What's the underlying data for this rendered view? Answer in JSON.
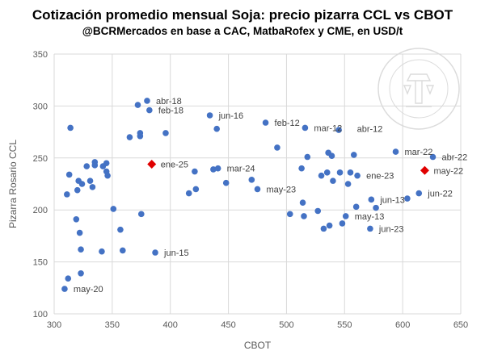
{
  "chart_data": {
    "type": "scatter",
    "title": "Cotización promedio mensual Soja: precio pizarra CCL vs CBOT",
    "subtitle": "@BCRMercados en base a CAC, MatbaRofex y CME, en USD/t",
    "xlabel": "CBOT",
    "ylabel": "Pizarra Rosario CCL",
    "xlim": [
      300,
      650
    ],
    "ylim": [
      100,
      350
    ],
    "x_ticks": [
      300,
      350,
      400,
      450,
      500,
      550,
      600,
      650
    ],
    "y_ticks": [
      100,
      150,
      200,
      250,
      300,
      350
    ],
    "grid": "major",
    "legend": "none",
    "watermark": "Bolsa de Comercio de Rosario",
    "colors": {
      "points": "#4472C4",
      "highlight": "#E00000",
      "grid": "#D9D9D9"
    },
    "series": [
      {
        "marker": "circle",
        "color": "#4472C4",
        "points": [
          [
            309,
            124
          ],
          [
            311,
            215
          ],
          [
            312,
            134
          ],
          [
            313,
            234
          ],
          [
            314,
            279
          ],
          [
            319,
            191
          ],
          [
            320,
            219
          ],
          [
            321,
            228
          ],
          [
            322,
            178
          ],
          [
            323,
            162
          ],
          [
            323,
            139
          ],
          [
            324,
            225
          ],
          [
            328,
            242
          ],
          [
            331,
            228
          ],
          [
            333,
            222
          ],
          [
            335,
            246
          ],
          [
            335,
            243
          ],
          [
            341,
            160
          ],
          [
            342,
            242
          ],
          [
            345,
            245
          ],
          [
            345,
            237
          ],
          [
            346,
            233
          ],
          [
            351,
            201
          ],
          [
            357,
            181
          ],
          [
            359,
            161
          ],
          [
            365,
            270
          ],
          [
            372,
            301
          ],
          [
            374,
            274
          ],
          [
            374,
            271
          ],
          [
            375,
            196
          ],
          [
            380,
            305
          ],
          [
            382,
            296
          ],
          [
            387,
            159
          ],
          [
            396,
            274
          ],
          [
            416,
            216
          ],
          [
            421,
            237
          ],
          [
            422,
            220
          ],
          [
            434,
            291
          ],
          [
            437,
            239
          ],
          [
            440,
            278
          ],
          [
            441,
            240
          ],
          [
            448,
            226
          ],
          [
            470,
            229
          ],
          [
            475,
            220
          ],
          [
            482,
            284
          ],
          [
            492,
            260
          ],
          [
            503,
            196
          ],
          [
            513,
            240
          ],
          [
            514,
            207
          ],
          [
            515,
            194
          ],
          [
            516,
            279
          ],
          [
            518,
            251
          ],
          [
            527,
            199
          ],
          [
            530,
            233
          ],
          [
            532,
            182
          ],
          [
            535,
            236
          ],
          [
            536,
            255
          ],
          [
            537,
            185
          ],
          [
            539,
            252
          ],
          [
            540,
            228
          ],
          [
            545,
            277
          ],
          [
            546,
            236
          ],
          [
            548,
            187
          ],
          [
            551,
            194
          ],
          [
            553,
            225
          ],
          [
            555,
            236
          ],
          [
            558,
            253
          ],
          [
            560,
            203
          ],
          [
            561,
            233
          ],
          [
            572,
            182
          ],
          [
            573,
            210
          ],
          [
            577,
            202
          ],
          [
            594,
            256
          ],
          [
            604,
            211
          ],
          [
            614,
            216
          ],
          [
            626,
            251
          ]
        ]
      },
      {
        "marker": "diamond",
        "color": "#E00000",
        "points": [
          [
            384,
            244
          ],
          [
            619,
            238
          ]
        ]
      }
    ],
    "annotations": [
      {
        "text": "abr-18",
        "x": 380,
        "y": 305
      },
      {
        "text": "feb-18",
        "x": 382,
        "y": 296
      },
      {
        "text": "jun-16",
        "x": 434,
        "y": 291
      },
      {
        "text": "feb-12",
        "x": 482,
        "y": 284
      },
      {
        "text": "mar-12",
        "x": 516,
        "y": 279
      },
      {
        "text": "abr-12",
        "x": 553,
        "y": 278
      },
      {
        "text": "mar-22",
        "x": 594,
        "y": 256
      },
      {
        "text": "abr-22",
        "x": 626,
        "y": 251
      },
      {
        "text": "ene-25",
        "x": 384,
        "y": 244
      },
      {
        "text": "mar-24",
        "x": 441,
        "y": 240
      },
      {
        "text": "may-22",
        "x": 619,
        "y": 238
      },
      {
        "text": "ene-23",
        "x": 561,
        "y": 233
      },
      {
        "text": "may-23",
        "x": 475,
        "y": 220
      },
      {
        "text": "jun-22",
        "x": 614,
        "y": 216
      },
      {
        "text": "jun-13",
        "x": 573,
        "y": 210
      },
      {
        "text": "may-13",
        "x": 551,
        "y": 194
      },
      {
        "text": "jun-23",
        "x": 572,
        "y": 182
      },
      {
        "text": "jun-15",
        "x": 387,
        "y": 159
      },
      {
        "text": "may-20",
        "x": 309,
        "y": 124
      }
    ]
  }
}
